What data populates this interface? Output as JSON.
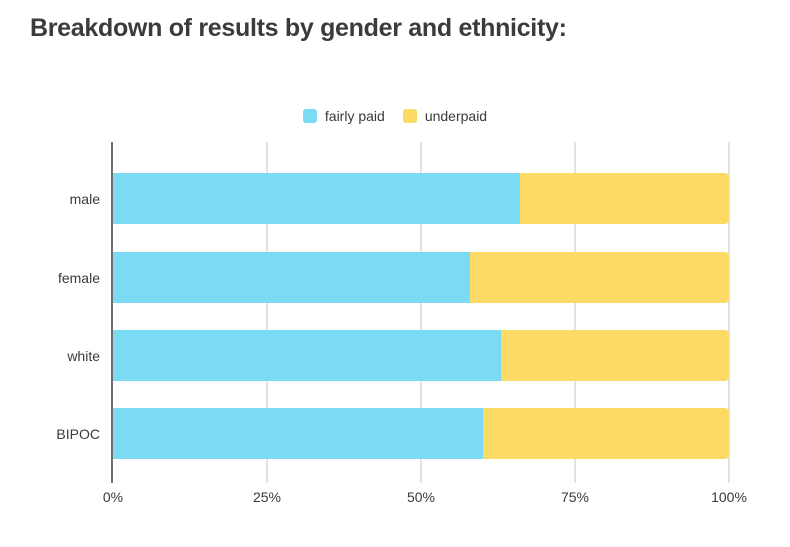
{
  "title": "Breakdown of results by gender and ethnicity:",
  "chart_data": {
    "type": "bar",
    "orientation": "horizontal",
    "stacked": true,
    "title": "Breakdown of results by gender and ethnicity:",
    "categories": [
      "male",
      "female",
      "white",
      "BIPOC"
    ],
    "series": [
      {
        "name": "fairly paid",
        "color": "#7bdaf4",
        "values": [
          66,
          58,
          63,
          60
        ]
      },
      {
        "name": "underpaid",
        "color": "#fbdb65",
        "values": [
          34,
          42,
          37,
          40
        ]
      }
    ],
    "x_ticks": [
      {
        "label": "0%",
        "value": 0
      },
      {
        "label": "25%",
        "value": 25
      },
      {
        "label": "50%",
        "value": 50
      },
      {
        "label": "75%",
        "value": 75
      },
      {
        "label": "100%",
        "value": 100
      }
    ],
    "xlim": [
      0,
      100
    ],
    "xlabel": "",
    "ylabel": "",
    "legend_position": "top-center",
    "grid": "vertical",
    "units": "percent"
  },
  "theme": {
    "background": "#ffffff",
    "title_color": "#3b3b3b",
    "text_color": "#3a3a3a",
    "gridline_color": "#e2e2e2",
    "axis_line_color": "#6f6f6f"
  }
}
